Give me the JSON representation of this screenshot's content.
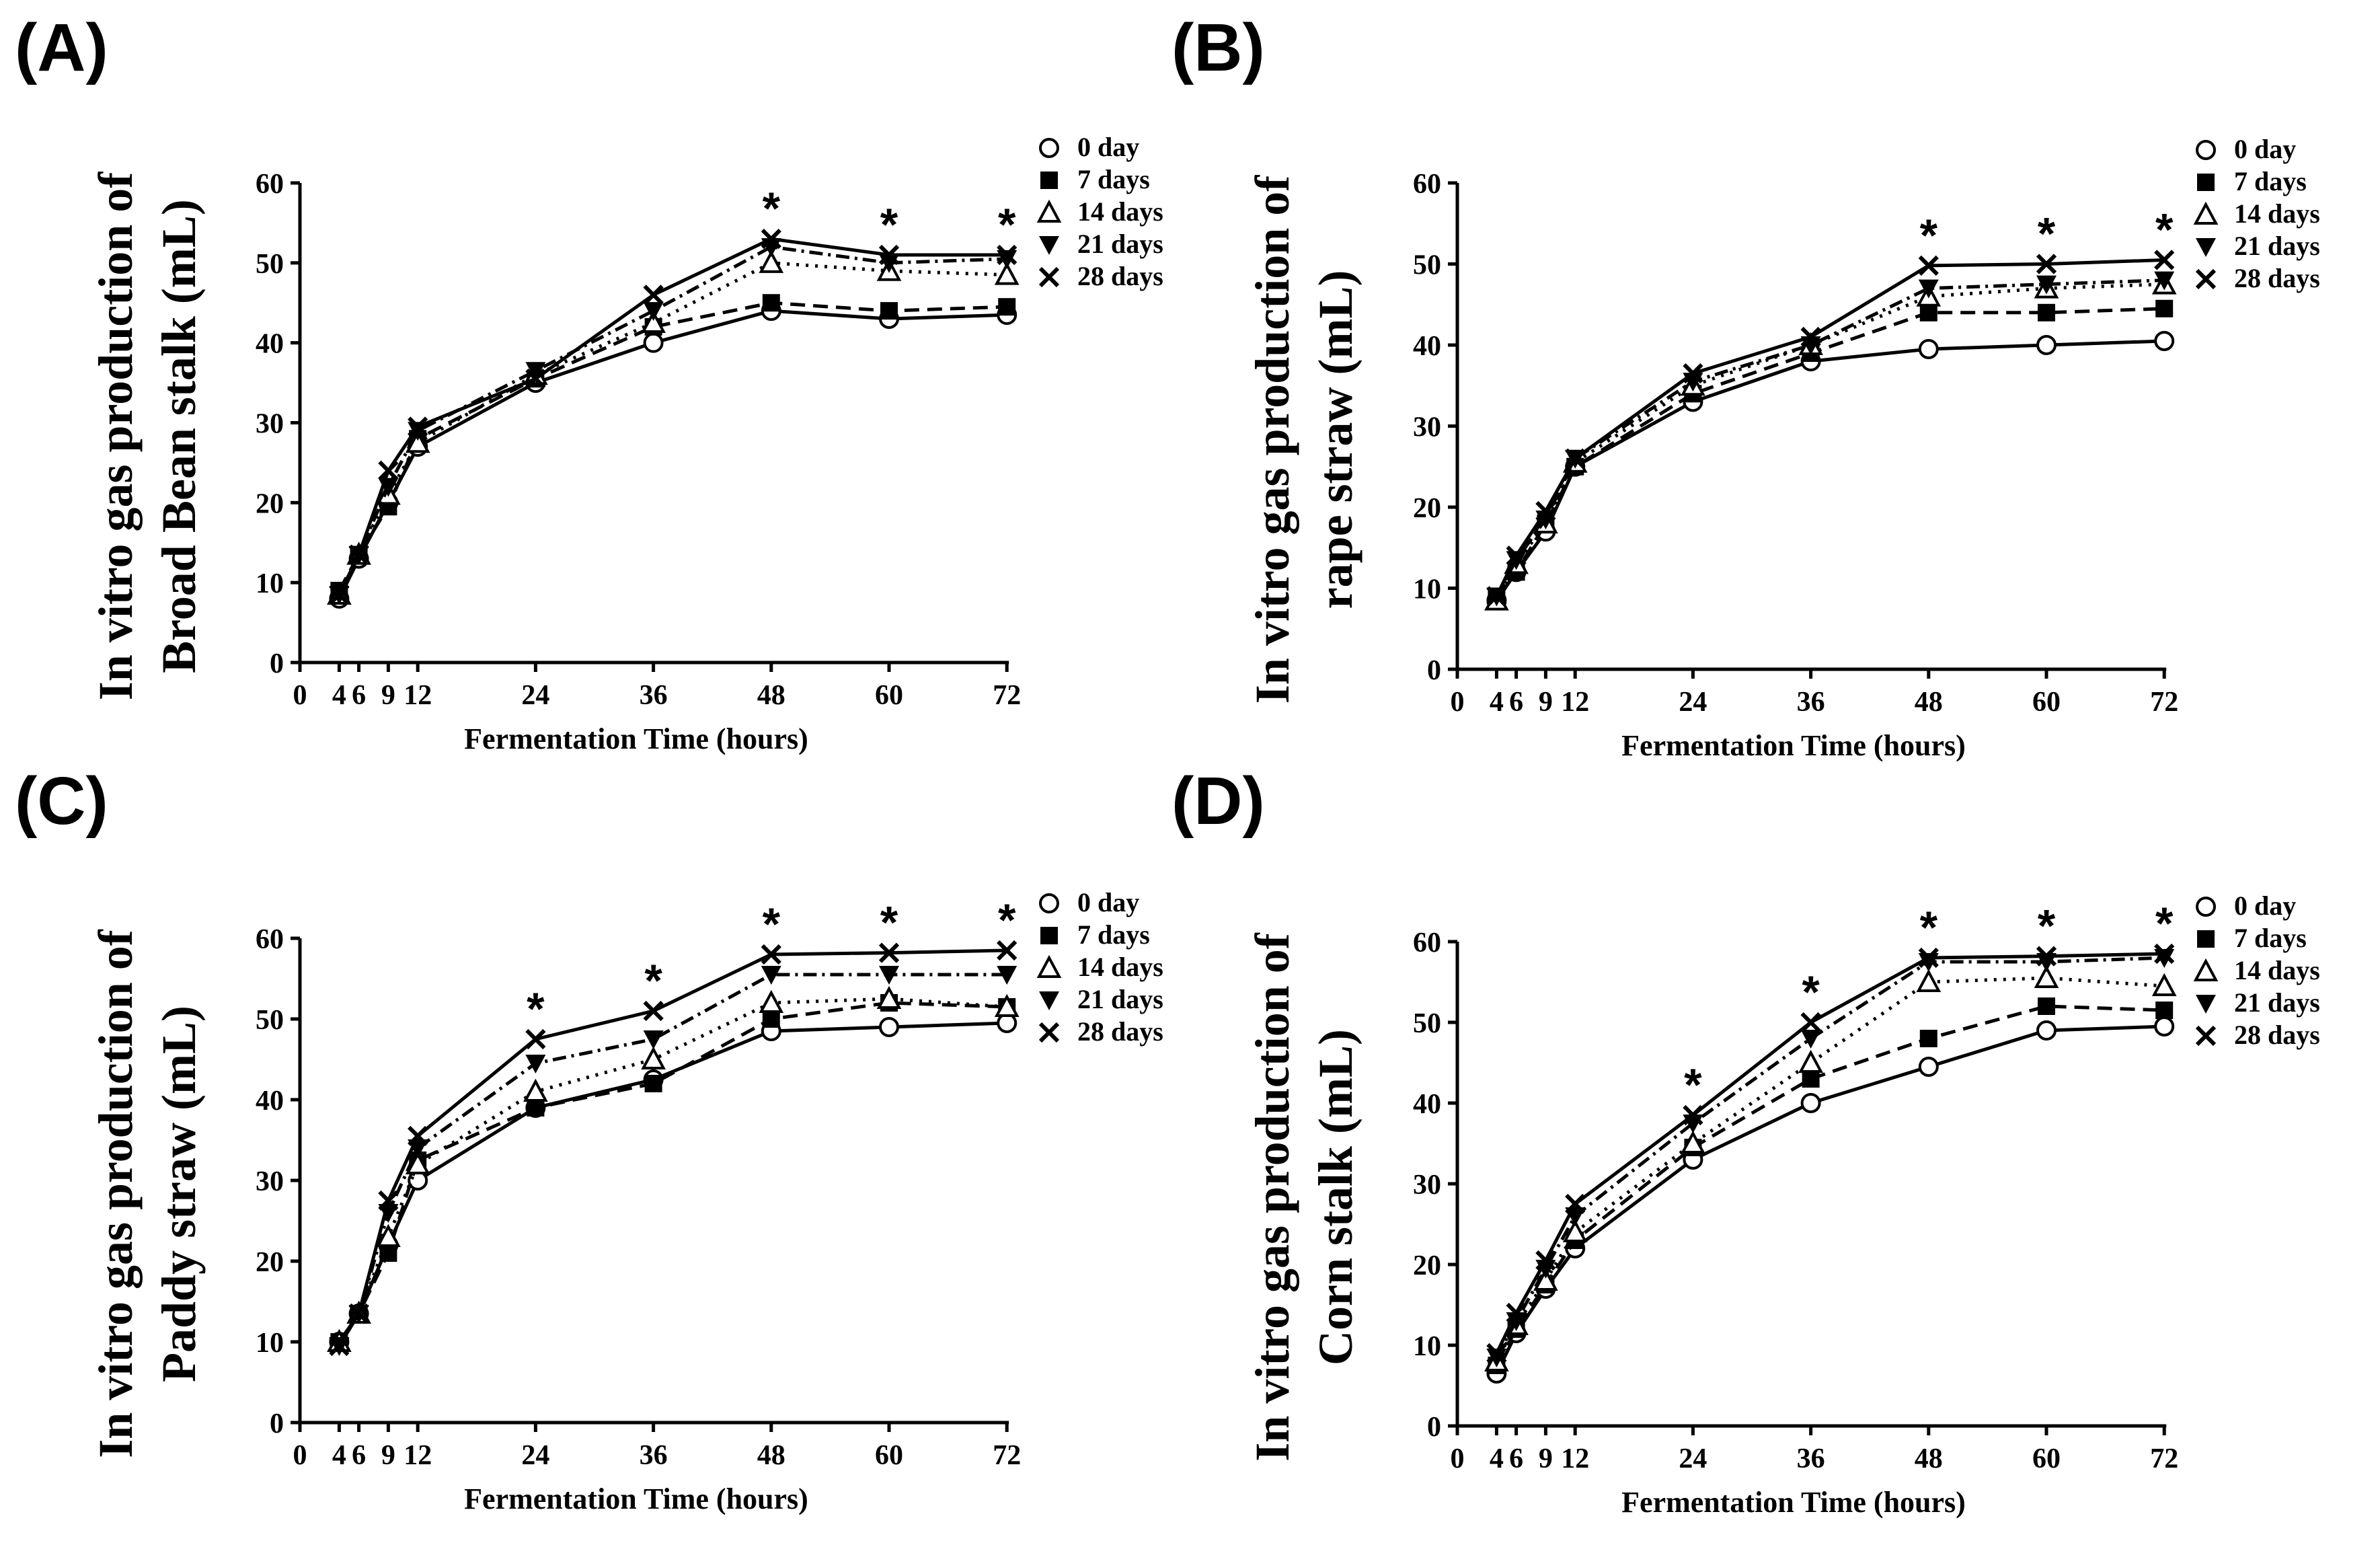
{
  "chart_data": [
    {
      "type": "line",
      "panel_label": "(A)",
      "ylabel_line1": "In vitro gas production of",
      "ylabel_line2": "Broad Bean stalk (mL)",
      "xlabel": "Fermentation  Time (hours)",
      "x": [
        4,
        6,
        9,
        12,
        24,
        36,
        48,
        60,
        72
      ],
      "x_ticks": [
        0,
        4,
        6,
        9,
        12,
        24,
        36,
        48,
        60,
        72
      ],
      "x_tick_labels": [
        "0",
        "4",
        "6",
        "9",
        "12",
        "24",
        "36",
        "48",
        "60",
        "72"
      ],
      "ylim": [
        0,
        60
      ],
      "y_ticks": [
        0,
        10,
        20,
        30,
        40,
        50,
        60
      ],
      "series": [
        {
          "name": "0 day",
          "marker": "circle",
          "dash": "solid",
          "values": [
            8,
            13,
            20,
            27,
            35,
            40,
            44,
            43,
            43.5
          ]
        },
        {
          "name": "7 days",
          "marker": "square",
          "dash": "dashed",
          "values": [
            9,
            13.5,
            19.5,
            28,
            35.5,
            42,
            45,
            44,
            44.5
          ]
        },
        {
          "name": "14 days",
          "marker": "triangle-up",
          "dash": "dotted",
          "values": [
            8.5,
            13.5,
            21,
            27.5,
            36,
            42.5,
            50,
            49,
            48.5
          ]
        },
        {
          "name": "21 days",
          "marker": "triangle-down",
          "dash": "dashdot",
          "values": [
            8.5,
            13.5,
            22,
            29,
            36.5,
            44,
            52,
            50,
            50.5
          ]
        },
        {
          "name": "28 days",
          "marker": "x",
          "dash": "solid",
          "values": [
            8.5,
            13.5,
            24,
            29.5,
            35.5,
            46,
            53,
            51,
            51
          ]
        }
      ],
      "significance": [
        {
          "x": 48,
          "y": 53,
          "label": "*"
        },
        {
          "x": 60,
          "y": 51,
          "label": "*"
        },
        {
          "x": 72,
          "y": 51,
          "label": "*"
        }
      ]
    },
    {
      "type": "line",
      "panel_label": "(B)",
      "ylabel_line1": "In vitro gas production of",
      "ylabel_line2": "rape straw (mL)",
      "xlabel": "Fermentation  Time (hours)",
      "x": [
        4,
        6,
        9,
        12,
        24,
        36,
        48,
        60,
        72
      ],
      "x_ticks": [
        0,
        4,
        6,
        9,
        12,
        24,
        36,
        48,
        60,
        72
      ],
      "x_tick_labels": [
        "0",
        "4",
        "6",
        "9",
        "12",
        "24",
        "36",
        "48",
        "60",
        "72"
      ],
      "ylim": [
        0,
        60
      ],
      "y_ticks": [
        0,
        10,
        20,
        30,
        40,
        50,
        60
      ],
      "series": [
        {
          "name": "0 day",
          "marker": "circle",
          "dash": "solid",
          "values": [
            8.5,
            12,
            17,
            25,
            33,
            38,
            39.5,
            40,
            40.5
          ]
        },
        {
          "name": "7 days",
          "marker": "square",
          "dash": "dashed",
          "values": [
            9,
            12,
            18,
            25,
            34,
            39,
            44,
            44,
            44.5
          ]
        },
        {
          "name": "14 days",
          "marker": "triangle-up",
          "dash": "dotted",
          "values": [
            8.5,
            13,
            18,
            25.5,
            35,
            40,
            46,
            47,
            47.5
          ]
        },
        {
          "name": "21 days",
          "marker": "triangle-down",
          "dash": "dashdot",
          "values": [
            9,
            13.5,
            18.5,
            26,
            35.5,
            40,
            47,
            47.5,
            48
          ]
        },
        {
          "name": "28 days",
          "marker": "x",
          "dash": "solid",
          "values": [
            9,
            14,
            19.5,
            26,
            36.5,
            41,
            49.8,
            50,
            50.5
          ]
        }
      ],
      "significance": [
        {
          "x": 48,
          "y": 49.8,
          "label": "*"
        },
        {
          "x": 60,
          "y": 50,
          "label": "*"
        },
        {
          "x": 72,
          "y": 50.5,
          "label": "*"
        }
      ]
    },
    {
      "type": "line",
      "panel_label": "(C)",
      "ylabel_line1": "In vitro gas production of",
      "ylabel_line2": "Paddy straw (mL)",
      "xlabel": "Fermentation  Time (hours)",
      "x": [
        4,
        6,
        9,
        12,
        24,
        36,
        48,
        60,
        72
      ],
      "x_ticks": [
        0,
        4,
        6,
        9,
        12,
        24,
        36,
        48,
        60,
        72
      ],
      "x_tick_labels": [
        "0",
        "4",
        "6",
        "9",
        "12",
        "24",
        "36",
        "48",
        "60",
        "72"
      ],
      "ylim": [
        0,
        60
      ],
      "y_ticks": [
        0,
        10,
        20,
        30,
        40,
        50,
        60
      ],
      "series": [
        {
          "name": "0 day",
          "marker": "circle",
          "dash": "solid",
          "values": [
            10,
            13.5,
            22,
            30,
            39,
            42.5,
            48.5,
            49,
            49.5
          ]
        },
        {
          "name": "7 days",
          "marker": "square",
          "dash": "dashed",
          "values": [
            10,
            13.5,
            21,
            32.5,
            39,
            42,
            50,
            52,
            51.5
          ]
        },
        {
          "name": "14 days",
          "marker": "triangle-up",
          "dash": "dotted",
          "values": [
            10,
            13.5,
            23,
            32,
            41,
            45,
            52,
            52.5,
            51.5
          ]
        },
        {
          "name": "21 days",
          "marker": "triangle-down",
          "dash": "dashdot",
          "values": [
            9.5,
            13.5,
            26,
            34,
            44.5,
            47.5,
            55.5,
            55.5,
            55.5
          ]
        },
        {
          "name": "28 days",
          "marker": "x",
          "dash": "solid",
          "values": [
            9.5,
            13.5,
            27.5,
            35.5,
            47.5,
            51,
            58,
            58.2,
            58.5
          ]
        }
      ],
      "significance": [
        {
          "x": 24,
          "y": 47.5,
          "label": "*"
        },
        {
          "x": 36,
          "y": 51,
          "label": "*"
        },
        {
          "x": 48,
          "y": 58,
          "label": "*"
        },
        {
          "x": 60,
          "y": 58.2,
          "label": "*"
        },
        {
          "x": 72,
          "y": 58.5,
          "label": "*"
        }
      ]
    },
    {
      "type": "line",
      "panel_label": "(D)",
      "ylabel_line1": "In vitro gas production of",
      "ylabel_line2": "Corn stalk (mL)",
      "xlabel": "Fermentation  Time (hours)",
      "x": [
        4,
        6,
        9,
        12,
        24,
        36,
        48,
        60,
        72
      ],
      "x_ticks": [
        0,
        4,
        6,
        9,
        12,
        24,
        36,
        48,
        60,
        72
      ],
      "x_tick_labels": [
        "0",
        "4",
        "6",
        "9",
        "12",
        "24",
        "36",
        "48",
        "60",
        "72"
      ],
      "ylim": [
        0,
        60
      ],
      "y_ticks": [
        0,
        10,
        20,
        30,
        40,
        50,
        60
      ],
      "series": [
        {
          "name": "0 day",
          "marker": "circle",
          "dash": "solid",
          "values": [
            6.5,
            11.5,
            17,
            22,
            33,
            40,
            44.5,
            49,
            49.5
          ]
        },
        {
          "name": "7 days",
          "marker": "square",
          "dash": "dashed",
          "values": [
            7.5,
            12,
            17.5,
            23,
            34.5,
            43,
            48,
            52,
            51.5
          ]
        },
        {
          "name": "14 days",
          "marker": "triangle-up",
          "dash": "dotted",
          "values": [
            8,
            12.5,
            18,
            24,
            35,
            45,
            55,
            55.5,
            54.5
          ]
        },
        {
          "name": "21 days",
          "marker": "triangle-down",
          "dash": "dashdot",
          "values": [
            8.5,
            13,
            19.5,
            26,
            37.5,
            48,
            57.5,
            57.5,
            58
          ]
        },
        {
          "name": "28 days",
          "marker": "x",
          "dash": "solid",
          "values": [
            9,
            14,
            20.5,
            27.5,
            38.5,
            50,
            58,
            58.2,
            58.5
          ]
        }
      ],
      "significance": [
        {
          "x": 24,
          "y": 38.5,
          "label": "*"
        },
        {
          "x": 36,
          "y": 50,
          "label": "*"
        },
        {
          "x": 48,
          "y": 58,
          "label": "*"
        },
        {
          "x": 60,
          "y": 58.2,
          "label": "*"
        },
        {
          "x": 72,
          "y": 58.5,
          "label": "*"
        }
      ]
    }
  ]
}
